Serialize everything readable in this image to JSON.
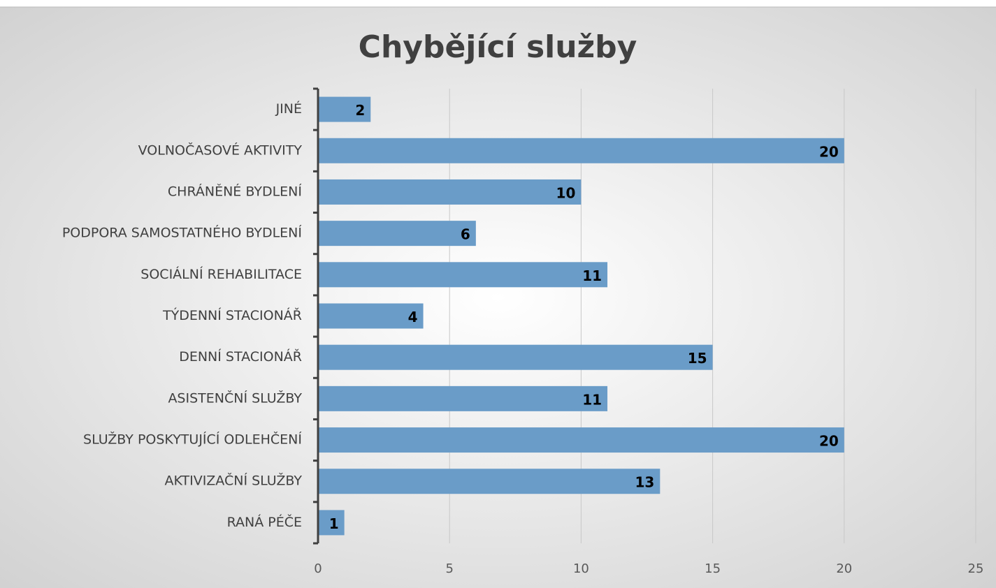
{
  "chart_data": {
    "type": "bar",
    "orientation": "horizontal",
    "title": "Chybějící služby",
    "categories": [
      "JINÉ",
      "VOLNOČASOVÉ AKTIVITY",
      "CHRÁNĚNÉ BYDLENÍ",
      "PODPORA SAMOSTATNÉHO BYDLENÍ",
      "SOCIÁLNÍ REHABILITACE",
      "TÝDENNÍ STACIONÁŘ",
      "DENNÍ STACIONÁŘ",
      "ASISTENČNÍ SLUŽBY",
      "SLUŽBY POSKYTUJÍCÍ ODLEHČENÍ",
      "AKTIVIZAČNÍ SLUŽBY",
      "RANÁ PÉČE"
    ],
    "values": [
      2,
      20,
      10,
      6,
      11,
      4,
      15,
      11,
      20,
      13,
      1
    ],
    "color": "#6a9cc8",
    "xlim": [
      0,
      25
    ],
    "xticks": [
      0,
      5,
      10,
      15,
      20,
      25
    ],
    "grid": true
  }
}
